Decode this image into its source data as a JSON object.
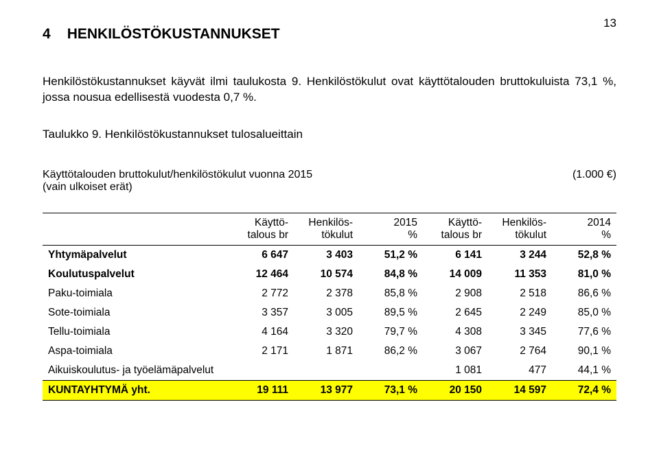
{
  "pagenum": "13",
  "section_number": "4",
  "section_title": "HENKILÖSTÖKUSTANNUKSET",
  "paragraph": "Henkilöstökustannukset käyvät ilmi taulukosta 9. Henkilöstökulut ovat käyttötalouden bruttokuluista 73,1 %, jossa nousua edellisestä vuodesta 0,7 %.",
  "table_caption": "Taulukko 9. Henkilöstökustannukset tulosalueittain",
  "subtitle_line1": "Käyttötalouden bruttokulut/henkilöstökulut vuonna 2015",
  "subtitle_unit": "(1.000 €)",
  "subtitle_line2": "(vain ulkoiset erät)",
  "columns": [
    {
      "l1": "",
      "l2": ""
    },
    {
      "l1": "Käyttö-",
      "l2": "talous br"
    },
    {
      "l1": "Henkilös-",
      "l2": "tökulut"
    },
    {
      "l1": "2015",
      "l2": "%"
    },
    {
      "l1": "Käyttö-",
      "l2": "talous br"
    },
    {
      "l1": "Henkilös-",
      "l2": "tökulut"
    },
    {
      "l1": "2014",
      "l2": "%"
    }
  ],
  "rows": [
    {
      "label": "Yhtymäpalvelut",
      "bold": true,
      "cells": [
        "6 647",
        "3 403",
        "51,2 %",
        "6 141",
        "3 244",
        "52,8 %"
      ]
    },
    {
      "label": "Koulutuspalvelut",
      "bold": true,
      "cells": [
        "12 464",
        "10 574",
        "84,8 %",
        "14 009",
        "11 353",
        "81,0 %"
      ]
    },
    {
      "label": "Paku-toimiala",
      "bold": false,
      "cells": [
        "2 772",
        "2 378",
        "85,8 %",
        "2 908",
        "2 518",
        "86,6 %"
      ]
    },
    {
      "label": "Sote-toimiala",
      "bold": false,
      "cells": [
        "3 357",
        "3 005",
        "89,5 %",
        "2 645",
        "2 249",
        "85,0 %"
      ]
    },
    {
      "label": "Tellu-toimiala",
      "bold": false,
      "cells": [
        "4 164",
        "3 320",
        "79,7 %",
        "4 308",
        "3 345",
        "77,6 %"
      ]
    },
    {
      "label": "Aspa-toimiala",
      "bold": false,
      "cells": [
        "2 171",
        "1 871",
        "86,2 %",
        "3 067",
        "2 764",
        "90,1 %"
      ]
    },
    {
      "label": "Aikuiskoulutus- ja työelämäpalvelut",
      "bold": false,
      "cells": [
        "",
        "",
        "",
        "1 081",
        "477",
        "44,1 %"
      ]
    }
  ],
  "total": {
    "label": "KUNTAYHTYMÄ yht.",
    "cells": [
      "19 111",
      "13 977",
      "73,1 %",
      "20 150",
      "14 597",
      "72,4 %"
    ]
  },
  "style": {
    "highlight_bg": "#fefe00",
    "text_color": "#000000",
    "page_bg": "#ffffff"
  }
}
